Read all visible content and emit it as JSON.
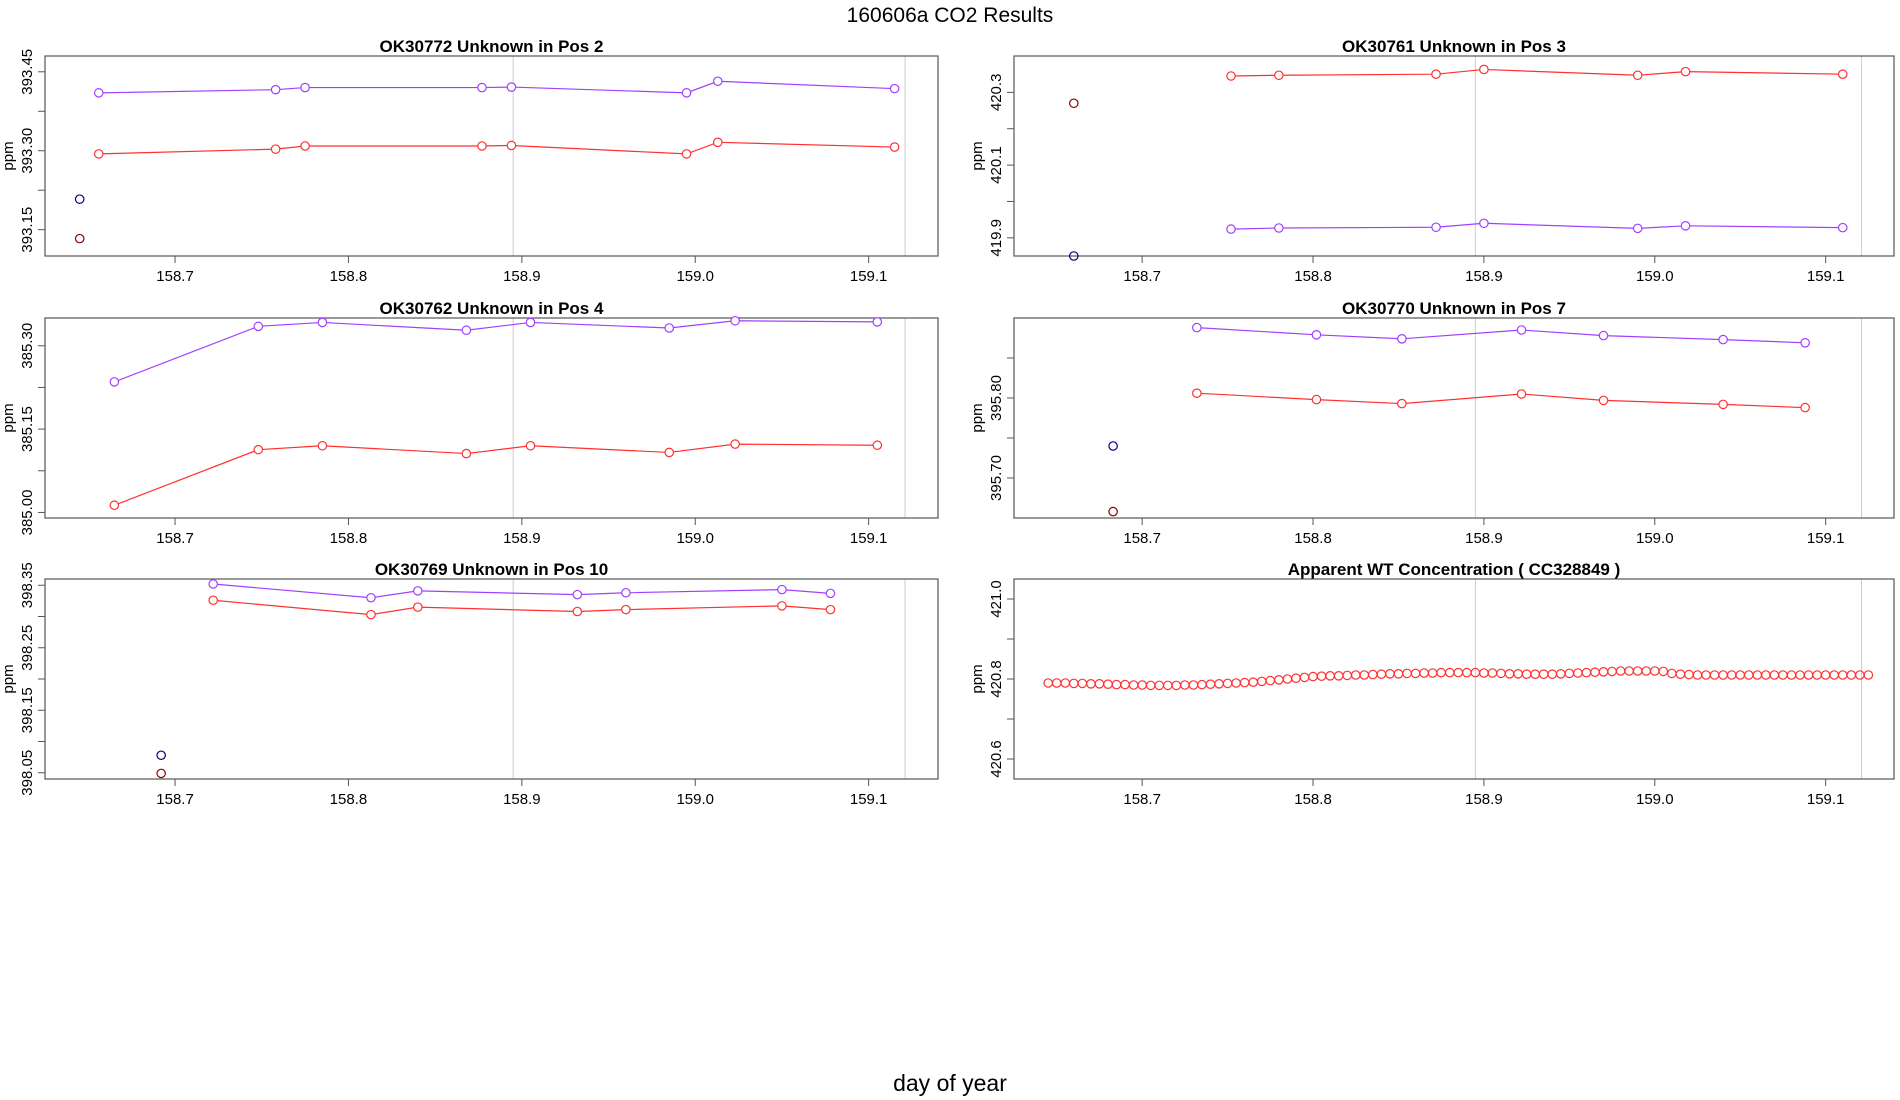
{
  "figure": {
    "title": "160606a  CO2 Results",
    "x_caption": "day of year"
  },
  "colors": {
    "red": "#ff3030",
    "purple": "#a040ff",
    "navy": "#000080",
    "darkred": "#8b0000",
    "ref": "#cccccc",
    "axis": "#555555"
  },
  "chart_data": [
    {
      "type": "line",
      "title": "OK30772    Unknown in Pos 2",
      "ylabel": "ppm",
      "xlim": [
        158.625,
        159.14
      ],
      "ylim": [
        393.1,
        393.48
      ],
      "xticks": [
        158.7,
        158.8,
        158.9,
        159.0,
        159.1
      ],
      "xtick_labels": [
        "158.7",
        "158.8",
        "158.9",
        "159.0",
        "159.1"
      ],
      "yticks": [
        393.15,
        393.3,
        393.45
      ],
      "ytick_labels": [
        "393.15",
        "393.30",
        "393.45"
      ],
      "minor_yticks": [
        393.225,
        393.375
      ],
      "ref_lines": [
        158.895,
        159.121
      ],
      "series": [
        {
          "name": "purple",
          "color": "#a040ff",
          "x": [
            158.656,
            158.758,
            158.775,
            158.877,
            158.894,
            158.995,
            159.013,
            159.115
          ],
          "y": [
            393.41,
            393.416,
            393.42,
            393.42,
            393.421,
            393.41,
            393.432,
            393.418
          ]
        },
        {
          "name": "red",
          "color": "#ff3030",
          "x": [
            158.656,
            158.758,
            158.775,
            158.877,
            158.894,
            158.995,
            159.013,
            159.115
          ],
          "y": [
            393.294,
            393.303,
            393.309,
            393.309,
            393.31,
            393.294,
            393.316,
            393.307
          ]
        }
      ],
      "points": [
        {
          "color": "#000080",
          "x": 158.645,
          "y": 393.208
        },
        {
          "color": "#8b0000",
          "x": 158.645,
          "y": 393.133
        }
      ]
    },
    {
      "type": "line",
      "title": "OK30761    Unknown in Pos 3",
      "ylabel": "ppm",
      "xlim": [
        158.625,
        159.14
      ],
      "ylim": [
        419.85,
        420.4
      ],
      "xticks": [
        158.7,
        158.8,
        158.9,
        159.0,
        159.1
      ],
      "xtick_labels": [
        "158.7",
        "158.8",
        "158.9",
        "159.0",
        "159.1"
      ],
      "yticks": [
        419.9,
        420.1,
        420.3
      ],
      "ytick_labels": [
        "419.9",
        "420.1",
        "420.3"
      ],
      "minor_yticks": [
        420.0,
        420.2
      ],
      "ref_lines": [
        158.895,
        159.121
      ],
      "series": [
        {
          "name": "red",
          "color": "#ff3030",
          "x": [
            158.752,
            158.78,
            158.872,
            158.9,
            158.99,
            159.018,
            159.11
          ],
          "y": [
            420.345,
            420.347,
            420.35,
            420.363,
            420.347,
            420.357,
            420.35
          ]
        },
        {
          "name": "purple",
          "color": "#a040ff",
          "x": [
            158.752,
            158.78,
            158.872,
            158.9,
            158.99,
            159.018,
            159.11
          ],
          "y": [
            419.924,
            419.927,
            419.929,
            419.94,
            419.926,
            419.933,
            419.928
          ]
        }
      ],
      "points": [
        {
          "color": "#8b0000",
          "x": 158.66,
          "y": 420.27
        },
        {
          "color": "#000080",
          "x": 158.66,
          "y": 419.85
        }
      ]
    },
    {
      "type": "line",
      "title": "OK30762    Unknown in Pos 4",
      "ylabel": "ppm",
      "xlim": [
        158.625,
        159.14
      ],
      "ylim": [
        384.99,
        385.35
      ],
      "xticks": [
        158.7,
        158.8,
        158.9,
        159.0,
        159.1
      ],
      "xtick_labels": [
        "158.7",
        "158.8",
        "158.9",
        "159.0",
        "159.1"
      ],
      "yticks": [
        385.0,
        385.15,
        385.3
      ],
      "ytick_labels": [
        "385.00",
        "385.15",
        "385.30"
      ],
      "minor_yticks": [
        385.075,
        385.225
      ],
      "ref_lines": [
        158.895,
        159.121
      ],
      "series": [
        {
          "name": "purple",
          "color": "#a040ff",
          "x": [
            158.665,
            158.748,
            158.785,
            158.868,
            158.905,
            158.985,
            159.023,
            159.105
          ],
          "y": [
            385.235,
            385.335,
            385.342,
            385.328,
            385.342,
            385.332,
            385.345,
            385.343
          ]
        },
        {
          "name": "red",
          "color": "#ff3030",
          "x": [
            158.665,
            158.748,
            158.785,
            158.868,
            158.905,
            158.985,
            159.023,
            159.105
          ],
          "y": [
            385.013,
            385.113,
            385.12,
            385.106,
            385.12,
            385.108,
            385.123,
            385.121
          ]
        }
      ],
      "points": []
    },
    {
      "type": "line",
      "title": "OK30770    Unknown in Pos 7",
      "ylabel": "ppm",
      "xlim": [
        158.625,
        159.14
      ],
      "ylim": [
        395.65,
        395.9
      ],
      "xticks": [
        158.7,
        158.8,
        158.9,
        159.0,
        159.1
      ],
      "xtick_labels": [
        "158.7",
        "158.8",
        "158.9",
        "159.0",
        "159.1"
      ],
      "yticks": [
        395.7,
        395.8
      ],
      "ytick_labels": [
        "395.70",
        "395.80"
      ],
      "minor_yticks": [
        395.75,
        395.85
      ],
      "ref_lines": [
        158.895,
        159.121
      ],
      "series": [
        {
          "name": "purple",
          "color": "#a040ff",
          "x": [
            158.732,
            158.802,
            158.852,
            158.922,
            158.97,
            159.04,
            159.088
          ],
          "y": [
            395.888,
            395.879,
            395.874,
            395.885,
            395.878,
            395.873,
            395.869
          ]
        },
        {
          "name": "red",
          "color": "#ff3030",
          "x": [
            158.732,
            158.802,
            158.852,
            158.922,
            158.97,
            159.04,
            159.088
          ],
          "y": [
            395.806,
            395.798,
            395.793,
            395.805,
            395.797,
            395.792,
            395.788
          ]
        }
      ],
      "points": [
        {
          "color": "#000080",
          "x": 158.683,
          "y": 395.74
        },
        {
          "color": "#8b0000",
          "x": 158.683,
          "y": 395.658
        }
      ]
    },
    {
      "type": "line",
      "title": "OK30769    Unknown in Pos 10",
      "ylabel": "ppm",
      "xlim": [
        158.625,
        159.14
      ],
      "ylim": [
        398.04,
        398.36
      ],
      "xticks": [
        158.7,
        158.8,
        158.9,
        159.0,
        159.1
      ],
      "xtick_labels": [
        "158.7",
        "158.8",
        "158.9",
        "159.0",
        "159.1"
      ],
      "yticks": [
        398.05,
        398.15,
        398.25,
        398.35
      ],
      "ytick_labels": [
        "398.05",
        "398.15",
        "398.25",
        "398.35"
      ],
      "minor_yticks": [
        398.1,
        398.2,
        398.3
      ],
      "ref_lines": [
        158.895,
        159.121
      ],
      "series": [
        {
          "name": "purple",
          "color": "#a040ff",
          "x": [
            158.722,
            158.813,
            158.84,
            158.932,
            158.96,
            159.05,
            159.078
          ],
          "y": [
            398.352,
            398.33,
            398.341,
            398.335,
            398.338,
            398.343,
            398.337
          ]
        },
        {
          "name": "red",
          "color": "#ff3030",
          "x": [
            158.722,
            158.813,
            158.84,
            158.932,
            158.96,
            159.05,
            159.078
          ],
          "y": [
            398.326,
            398.303,
            398.315,
            398.308,
            398.311,
            398.317,
            398.311
          ]
        }
      ],
      "points": [
        {
          "color": "#000080",
          "x": 158.692,
          "y": 398.078
        },
        {
          "color": "#8b0000",
          "x": 158.692,
          "y": 398.049
        }
      ]
    },
    {
      "type": "scatter",
      "title": "Apparent WT Concentration ( CC328849 )",
      "ylabel": "ppm",
      "xlim": [
        158.625,
        159.14
      ],
      "ylim": [
        420.55,
        421.05
      ],
      "xticks": [
        158.7,
        158.8,
        158.9,
        159.0,
        159.1
      ],
      "xtick_labels": [
        "158.7",
        "158.8",
        "158.9",
        "159.0",
        "159.1"
      ],
      "yticks": [
        420.6,
        420.8,
        421.0
      ],
      "ytick_labels": [
        "420.6",
        "420.8",
        "421.0"
      ],
      "minor_yticks": [
        420.7,
        420.9
      ],
      "ref_lines": [
        158.895,
        159.121
      ],
      "scatter": {
        "color": "#ff3030",
        "x_start": 158.645,
        "x_step": 0.005,
        "y": [
          420.79,
          420.79,
          420.79,
          420.789,
          420.789,
          420.788,
          420.788,
          420.787,
          420.786,
          420.786,
          420.785,
          420.785,
          420.784,
          420.784,
          420.784,
          420.784,
          420.785,
          420.785,
          420.786,
          420.787,
          420.788,
          420.789,
          420.79,
          420.791,
          420.792,
          420.794,
          420.796,
          420.798,
          420.8,
          420.802,
          420.804,
          420.806,
          420.807,
          420.808,
          420.808,
          420.809,
          420.81,
          420.81,
          420.811,
          420.812,
          420.813,
          420.813,
          420.814,
          420.814,
          420.815,
          420.815,
          420.816,
          420.816,
          420.816,
          420.816,
          420.816,
          420.815,
          420.815,
          420.814,
          420.813,
          420.813,
          420.812,
          420.812,
          420.812,
          420.812,
          420.813,
          420.814,
          420.815,
          420.816,
          420.817,
          420.818,
          420.819,
          420.82,
          420.82,
          420.82,
          420.82,
          420.82,
          420.819,
          420.814,
          420.812,
          420.811,
          420.81,
          420.81,
          420.81,
          420.81,
          420.81,
          420.81,
          420.81,
          420.81,
          420.81,
          420.81,
          420.81,
          420.81,
          420.81,
          420.81,
          420.81,
          420.81,
          420.81,
          420.81,
          420.81,
          420.81,
          420.81
        ]
      },
      "series": [],
      "points": []
    }
  ]
}
